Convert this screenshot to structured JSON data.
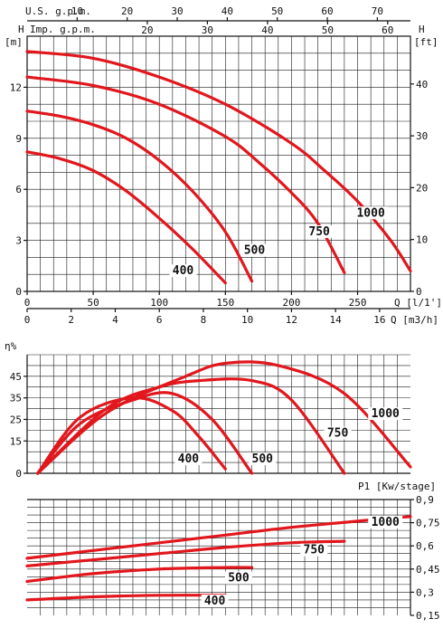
{
  "colors": {
    "curve": "#e1171d",
    "grid": "#1a1a1a",
    "background": "#ffffff"
  },
  "chart_data": [
    {
      "type": "line",
      "title": "",
      "xlabel": "Q [l/1']",
      "ylabel_left": "H [m]",
      "ylabel_right": "H [ft]",
      "xlim": [
        0,
        290
      ],
      "ylim": [
        0,
        15
      ],
      "top_axis_1": {
        "label": "U.S. g.p.m.",
        "ticks": [
          "10",
          "20",
          "30",
          "40",
          "50",
          "60",
          "70"
        ]
      },
      "top_axis_2": {
        "label": "Imp. g.p.m.",
        "ticks": [
          "20",
          "30",
          "40",
          "50",
          "60"
        ]
      },
      "x_ticks": [
        "0",
        "50",
        "100",
        "150",
        "200",
        "250"
      ],
      "y_ticks": [
        "0",
        "3",
        "6",
        "9",
        "12"
      ],
      "right_ticks": [
        "0",
        "10",
        "20",
        "30",
        "40"
      ],
      "bottom_axis": {
        "label": "Q [m3/h]",
        "ticks": [
          "0",
          "2",
          "4",
          "6",
          "8",
          "10",
          "12",
          "14",
          "16"
        ]
      },
      "series": [
        {
          "name": "400",
          "x": [
            0,
            25,
            50,
            75,
            100,
            125,
            150
          ],
          "y": [
            8.2,
            7.8,
            7.1,
            5.9,
            4.3,
            2.5,
            0.5
          ]
        },
        {
          "name": "500",
          "x": [
            0,
            25,
            50,
            75,
            100,
            125,
            150,
            170
          ],
          "y": [
            10.6,
            10.3,
            9.8,
            9.0,
            7.7,
            5.9,
            3.5,
            0.6
          ]
        },
        {
          "name": "750",
          "x": [
            0,
            50,
            100,
            150,
            175,
            200,
            220,
            240
          ],
          "y": [
            12.6,
            12.1,
            11.0,
            9.1,
            7.6,
            5.8,
            4.0,
            1.1
          ]
        },
        {
          "name": "1000",
          "x": [
            0,
            50,
            100,
            150,
            200,
            225,
            250,
            275,
            290
          ],
          "y": [
            14.1,
            13.7,
            12.6,
            11.0,
            8.7,
            7.1,
            5.3,
            3.0,
            1.2
          ]
        }
      ]
    },
    {
      "type": "line",
      "title": "",
      "ylabel": "η%",
      "xlim": [
        0,
        290
      ],
      "ylim": [
        0,
        55
      ],
      "y_ticks": [
        "0",
        "15",
        "25",
        "35",
        "45"
      ],
      "series": [
        {
          "name": "400",
          "x": [
            8,
            40,
            80,
            110,
            130,
            150
          ],
          "y": [
            0,
            26,
            35,
            29,
            17,
            2
          ]
        },
        {
          "name": "500",
          "x": [
            8,
            40,
            80,
            110,
            140,
            170
          ],
          "y": [
            0,
            23,
            34,
            37,
            25,
            0
          ]
        },
        {
          "name": "750",
          "x": [
            8,
            60,
            100,
            130,
            170,
            200,
            240
          ],
          "y": [
            0,
            30,
            40,
            43,
            43,
            34,
            0
          ]
        },
        {
          "name": "1000",
          "x": [
            8,
            60,
            120,
            150,
            190,
            240,
            290
          ],
          "y": [
            0,
            28,
            45,
            51,
            50,
            37,
            3
          ]
        }
      ]
    },
    {
      "type": "line",
      "title": "",
      "ylabel": "P1 [Kw/stage]",
      "xlim": [
        0,
        290
      ],
      "ylim": [
        0.15,
        0.9
      ],
      "right_ticks": [
        "0,15",
        "0,3",
        "0,45",
        "0,6",
        "0,75",
        "0,9"
      ],
      "series": [
        {
          "name": "400",
          "x": [
            0,
            50,
            100,
            150
          ],
          "y": [
            0.25,
            0.27,
            0.28,
            0.28
          ]
        },
        {
          "name": "500",
          "x": [
            0,
            50,
            100,
            150,
            170
          ],
          "y": [
            0.37,
            0.42,
            0.45,
            0.46,
            0.46
          ]
        },
        {
          "name": "750",
          "x": [
            0,
            50,
            100,
            150,
            200,
            240
          ],
          "y": [
            0.47,
            0.51,
            0.55,
            0.59,
            0.62,
            0.63
          ]
        },
        {
          "name": "1000",
          "x": [
            0,
            50,
            100,
            150,
            200,
            250,
            290
          ],
          "y": [
            0.52,
            0.57,
            0.62,
            0.67,
            0.72,
            0.76,
            0.79
          ]
        }
      ]
    }
  ]
}
